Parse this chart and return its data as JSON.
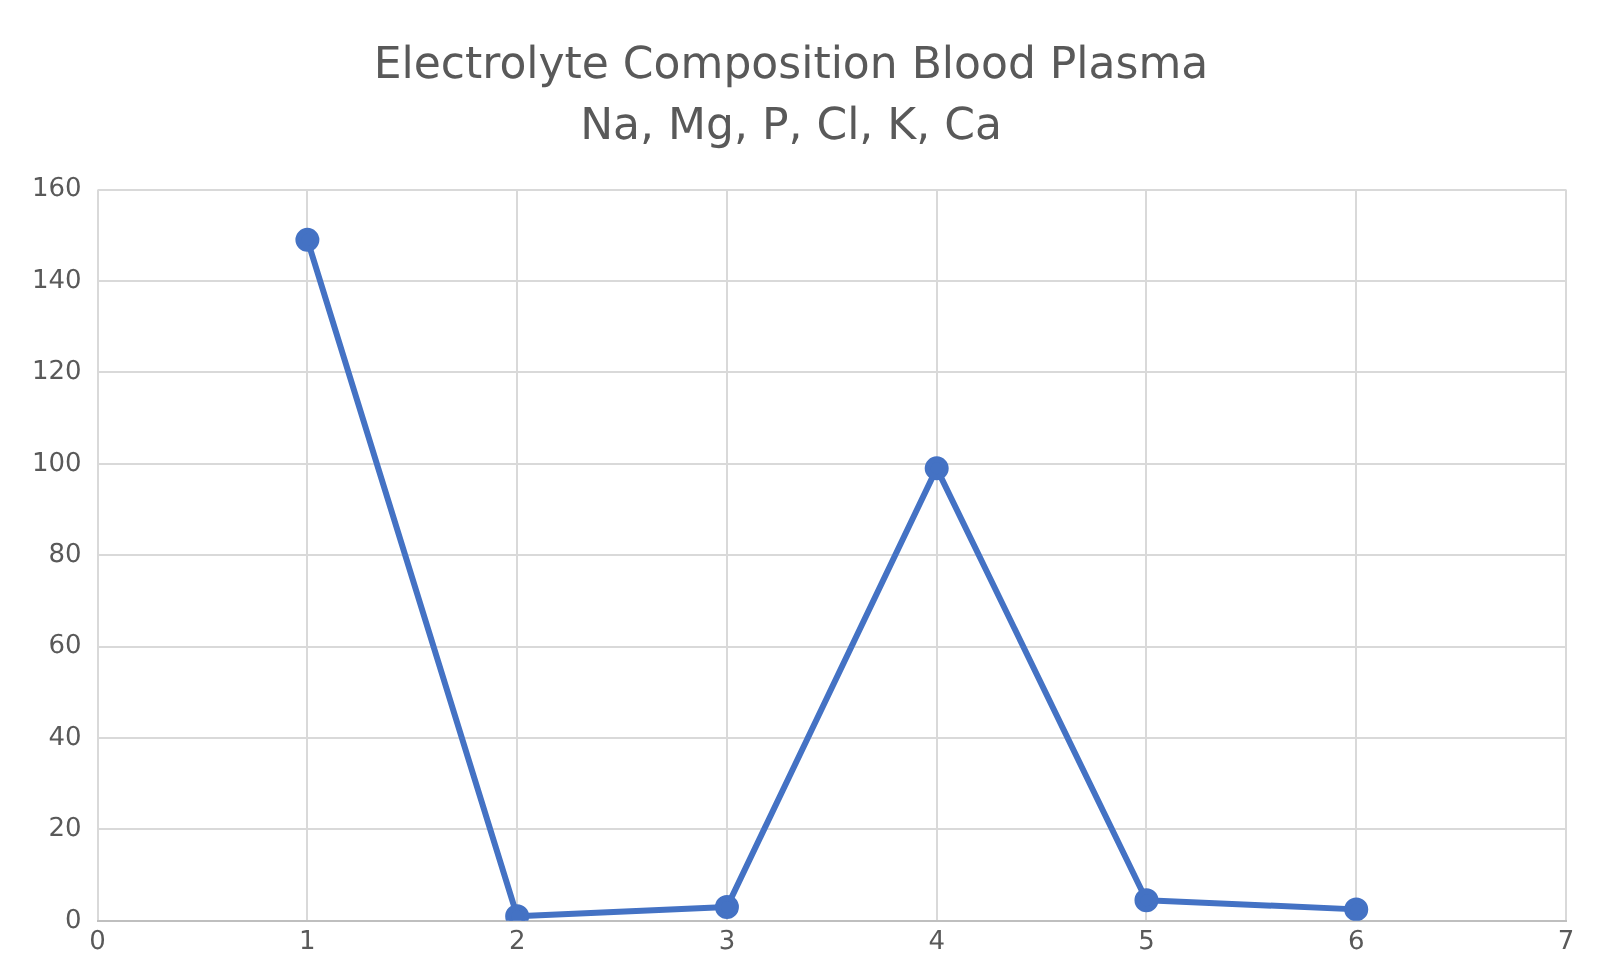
{
  "chart_data": {
    "type": "line",
    "title": "Electrolyte Composition Blood Plasma",
    "subtitle": "Na, Mg, P, Cl, K, Ca",
    "x": [
      1,
      2,
      3,
      4,
      5,
      6
    ],
    "series": [
      {
        "color": "#4472c4",
        "values": [
          149,
          1,
          3,
          99,
          4.5,
          2.5
        ]
      }
    ],
    "xlim": [
      0,
      7
    ],
    "xticks": [
      0,
      1,
      2,
      3,
      4,
      5,
      6,
      7
    ],
    "ylim": [
      0,
      160
    ],
    "yticks": [
      0,
      20,
      40,
      60,
      80,
      100,
      120,
      140,
      160
    ],
    "grid": true,
    "marker": "circle",
    "line_style": "solid",
    "legend": false
  }
}
